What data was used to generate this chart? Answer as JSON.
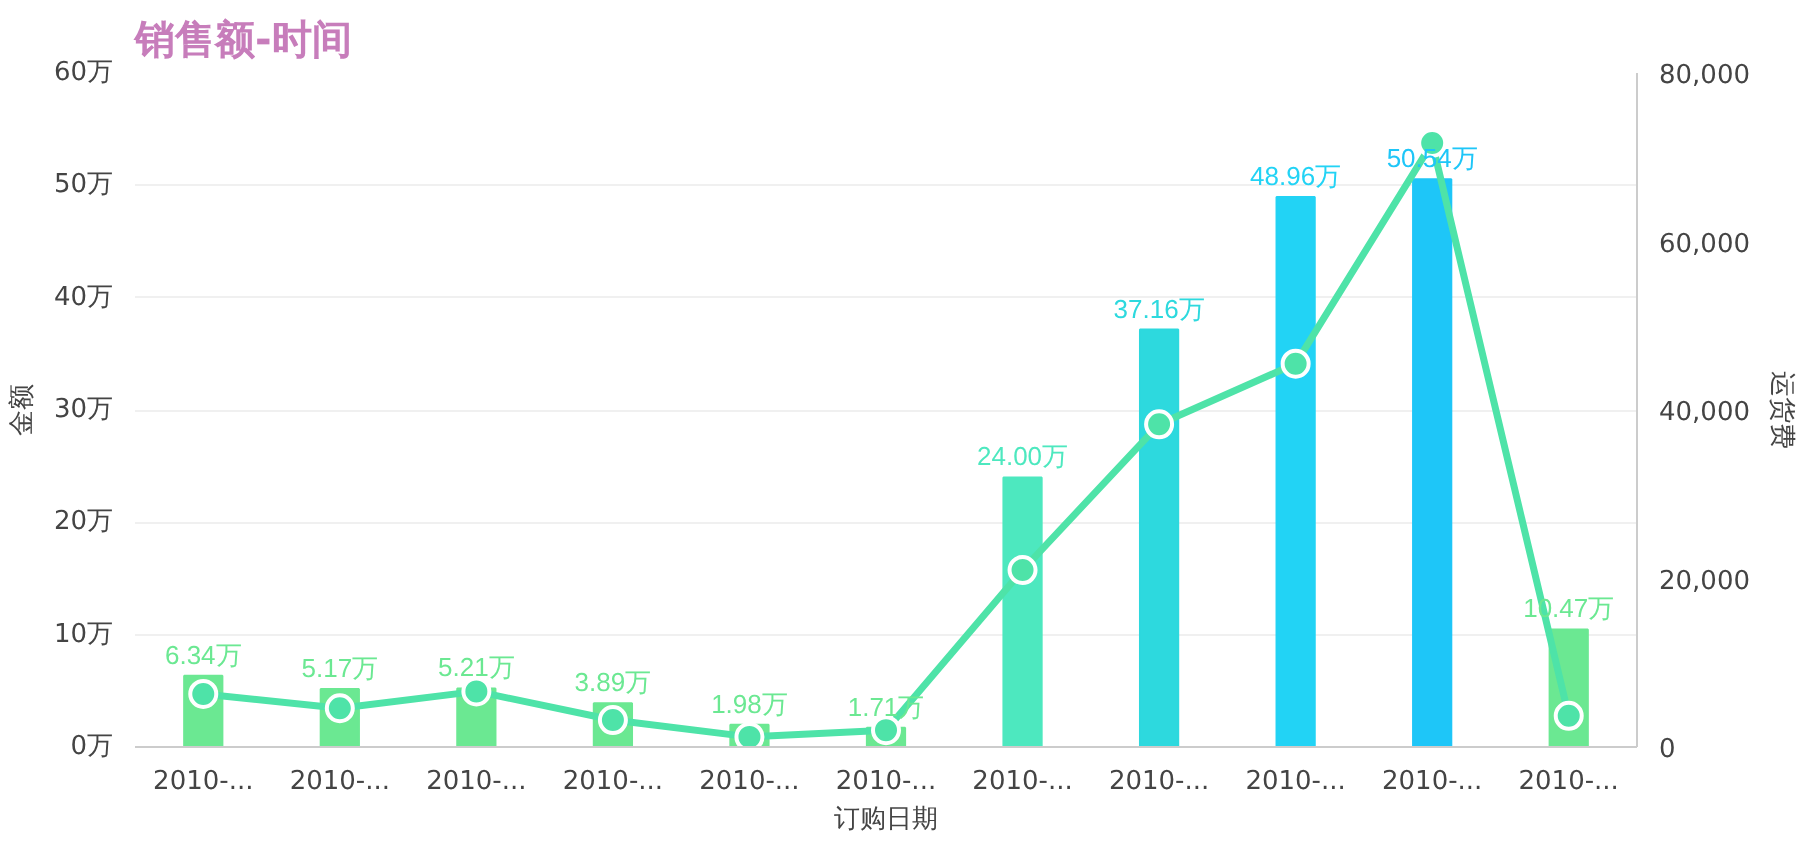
{
  "chart_data": {
    "type": "bar",
    "title": "销售额-时间",
    "xlabel": "订购日期",
    "ylabel": "金额",
    "y2label": "运货费",
    "categories": [
      "2010-...",
      "2010-...",
      "2010-...",
      "2010-...",
      "2010-...",
      "2010-...",
      "2010-...",
      "2010-...",
      "2010-...",
      "2010-...",
      "2010-..."
    ],
    "series": [
      {
        "colors": [
          "#6be892",
          "#6be892",
          "#6be892",
          "#6be892",
          "#6be892",
          "#6be892",
          "#4de8bf",
          "#2dd9de",
          "#22d3f5",
          "#1ec6f8",
          "#6be892"
        ],
        "values": [
          6.34,
          5.17,
          5.21,
          3.89,
          1.98,
          1.71,
          24.0,
          37.16,
          48.96,
          50.54,
          10.47
        ],
        "value_labels": [
          "6.34万",
          "5.17万",
          "5.21万",
          "3.89万",
          "1.98万",
          "1.71万",
          "24.00万",
          "37.16万",
          "48.96万",
          "50.54万",
          "10.47万"
        ]
      },
      {
        "type": "line",
        "axis": "y2",
        "color": "#4ee3a8",
        "values": [
          6300,
          4600,
          6600,
          3200,
          1200,
          2000,
          21000,
          38300,
          45500,
          71700,
          3700
        ]
      }
    ],
    "ylim": [
      0,
      60
    ],
    "yticks": [
      {
        "value": 0,
        "label": "0万"
      },
      {
        "value": 10,
        "label": "10万"
      },
      {
        "value": 20,
        "label": "20万"
      },
      {
        "value": 30,
        "label": "30万"
      },
      {
        "value": 40,
        "label": "40万"
      },
      {
        "value": 50,
        "label": "50万"
      },
      {
        "value": 60,
        "label": "60万"
      }
    ],
    "y2lim": [
      0,
      80000
    ],
    "y2ticks": [
      0,
      {
        "value": 20000,
        "label": "20,000"
      },
      {
        "value": 40000,
        "label": "40,000"
      },
      {
        "value": 60000,
        "label": "60,000"
      },
      {
        "value": 80000,
        "label": "80,000"
      }
    ],
    "grid": "y",
    "marker": "circle"
  }
}
